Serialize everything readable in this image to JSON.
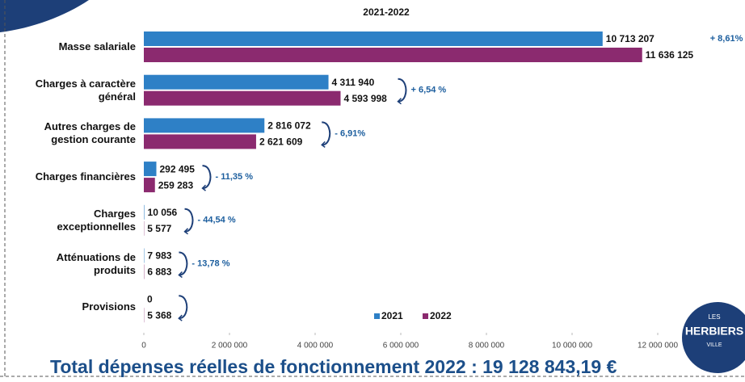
{
  "chart_data": {
    "type": "barh",
    "title": "2021-2022",
    "categories": [
      "Masse salariale",
      "Charges à caractère général",
      "Autres charges de gestion courante",
      "Charges financières",
      "Charges exceptionnelles",
      "Atténuations de produits",
      "Provisions"
    ],
    "series": [
      {
        "name": "2021",
        "color": "#2e80c6",
        "values": [
          10713207,
          4311940,
          2816072,
          292495,
          10056,
          7983,
          0
        ],
        "value_labels": [
          "10 713 207",
          "4 311 940",
          "2 816 072",
          "292 495",
          "10 056",
          "7 983",
          "0"
        ]
      },
      {
        "name": "2022",
        "color": "#8b2a6f",
        "values": [
          11636125,
          4593998,
          2621609,
          259283,
          5577,
          6883,
          5368
        ],
        "value_labels": [
          "11 636 125",
          "4 593 998",
          "2 621 609",
          "259 283",
          "5 577",
          "6 883",
          "5 368"
        ]
      }
    ],
    "annotations": [
      "+ 8,61%",
      "+ 6,54 %",
      "- 6,91%",
      "- 11,35 %",
      "- 44,54 %",
      "- 13,78 %"
    ],
    "xlim": [
      0,
      12000000
    ],
    "xticks": [
      0,
      {
        "value": 2000000,
        "label": "2 000 000"
      },
      {
        "value": 4000000,
        "label": "4 000 000"
      },
      {
        "value": 6000000,
        "label": "6 000 000"
      },
      {
        "value": 8000000,
        "label": "8 000 000"
      },
      {
        "value": 10000000,
        "label": "10 000 000"
      },
      {
        "value": 12000000,
        "label": "12 000 000"
      }
    ],
    "legend": "bottom-right",
    "footer": "Total dépenses réelles de fonctionnement 2022 :  19 128 843,19 €",
    "logo": {
      "top": "LES",
      "name": "HERBIERS",
      "bottom": "VILLE"
    }
  }
}
